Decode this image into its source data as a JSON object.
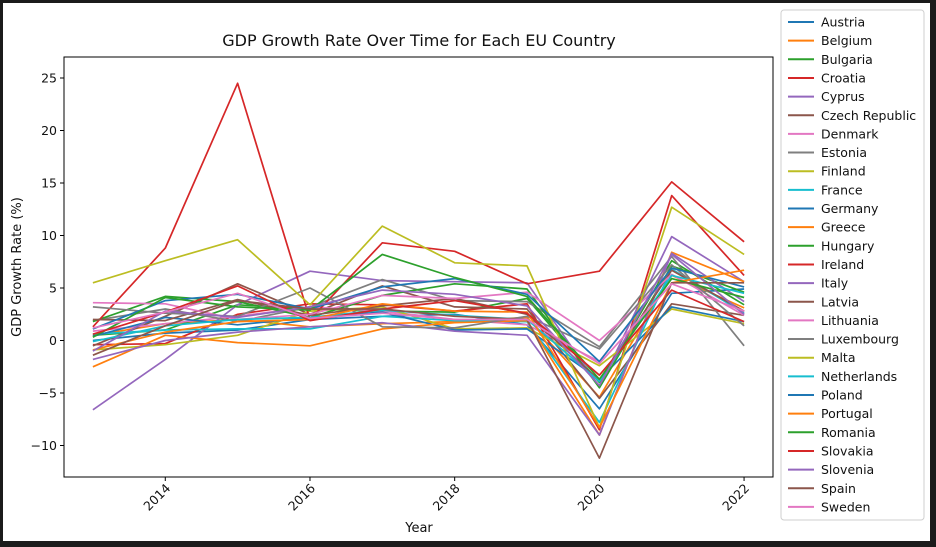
{
  "chart_data": {
    "type": "line",
    "title": "GDP Growth Rate Over Time for Each EU Country",
    "xlabel": "Year",
    "ylabel": "GDP Growth Rate (%)",
    "xlim": [
      2012.6,
      2022.4
    ],
    "ylim": [
      -13,
      27
    ],
    "xticks": [
      2014,
      2016,
      2018,
      2020,
      2022
    ],
    "yticks": [
      -10,
      -5,
      0,
      5,
      10,
      15,
      20,
      25
    ],
    "grid": false,
    "legend_position": "outside-right",
    "x": [
      2013,
      2014,
      2015,
      2016,
      2017,
      2018,
      2019,
      2020,
      2021,
      2022
    ],
    "series": [
      {
        "name": "Austria",
        "color": "#1f77b4",
        "values": [
          0.0,
          0.7,
          1.0,
          2.0,
          2.3,
          2.5,
          1.5,
          -6.5,
          4.5,
          4.9
        ]
      },
      {
        "name": "Belgium",
        "color": "#ff7f0e",
        "values": [
          0.5,
          1.6,
          2.0,
          1.3,
          1.6,
          1.8,
          2.2,
          -5.4,
          6.2,
          3.1
        ]
      },
      {
        "name": "Bulgaria",
        "color": "#2ca02c",
        "values": [
          0.5,
          1.0,
          3.4,
          3.0,
          2.8,
          2.7,
          4.0,
          -4.0,
          7.6,
          3.4
        ]
      },
      {
        "name": "Croatia",
        "color": "#d62728",
        "values": [
          -0.4,
          -0.3,
          2.5,
          3.5,
          3.4,
          2.8,
          3.5,
          -8.5,
          13.8,
          6.2
        ]
      },
      {
        "name": "Cyprus",
        "color": "#9467bd",
        "values": [
          -6.6,
          -1.8,
          3.4,
          6.6,
          5.7,
          5.6,
          5.5,
          -4.4,
          9.9,
          5.6
        ]
      },
      {
        "name": "Czech Republic",
        "color": "#8c564b",
        "values": [
          -0.5,
          2.3,
          5.4,
          2.5,
          5.2,
          3.2,
          3.0,
          -5.5,
          3.5,
          2.4
        ]
      },
      {
        "name": "Denmark",
        "color": "#e377c2",
        "values": [
          0.9,
          1.6,
          2.3,
          3.2,
          2.8,
          2.0,
          1.5,
          -2.0,
          6.8,
          2.7
        ]
      },
      {
        "name": "Estonia",
        "color": "#7f7f7f",
        "values": [
          1.9,
          3.0,
          1.8,
          3.2,
          5.8,
          3.8,
          3.7,
          -0.6,
          8.0,
          -0.5
        ]
      },
      {
        "name": "Finland",
        "color": "#bcbd22",
        "values": [
          -0.9,
          -0.4,
          0.5,
          2.8,
          3.2,
          1.1,
          1.2,
          -2.4,
          3.0,
          1.6
        ]
      },
      {
        "name": "France",
        "color": "#17becf",
        "values": [
          0.6,
          1.0,
          1.1,
          1.1,
          2.3,
          1.9,
          1.8,
          -7.8,
          6.8,
          2.6
        ]
      },
      {
        "name": "Germany",
        "color": "#1f77b4",
        "values": [
          0.4,
          2.2,
          1.5,
          2.2,
          2.7,
          1.0,
          1.1,
          -3.7,
          3.2,
          1.8
        ]
      },
      {
        "name": "Greece",
        "color": "#ff7f0e",
        "values": [
          -2.5,
          0.5,
          -0.2,
          -0.5,
          1.1,
          1.7,
          1.9,
          -9.0,
          8.4,
          5.6
        ]
      },
      {
        "name": "Hungary",
        "color": "#2ca02c",
        "values": [
          1.8,
          4.2,
          3.7,
          2.2,
          4.3,
          5.4,
          4.9,
          -4.5,
          7.1,
          4.6
        ]
      },
      {
        "name": "Ireland",
        "color": "#d62728",
        "values": [
          1.3,
          8.8,
          24.5,
          2.0,
          9.3,
          8.5,
          5.4,
          6.6,
          15.1,
          9.4
        ]
      },
      {
        "name": "Italy",
        "color": "#9467bd",
        "values": [
          -1.8,
          0.0,
          0.8,
          1.3,
          1.7,
          0.9,
          0.5,
          -9.0,
          8.3,
          3.7
        ]
      },
      {
        "name": "Latvia",
        "color": "#8c564b",
        "values": [
          2.0,
          1.9,
          3.9,
          2.4,
          3.3,
          4.0,
          2.5,
          -3.8,
          6.7,
          2.8
        ]
      },
      {
        "name": "Lithuania",
        "color": "#e377c2",
        "values": [
          3.6,
          3.5,
          2.0,
          2.5,
          4.3,
          4.0,
          4.6,
          0.0,
          6.3,
          2.4
        ]
      },
      {
        "name": "Luxembourg",
        "color": "#7f7f7f",
        "values": [
          3.2,
          2.6,
          2.3,
          5.0,
          1.3,
          1.2,
          2.3,
          -0.8,
          7.2,
          1.4
        ]
      },
      {
        "name": "Malta",
        "color": "#bcbd22",
        "values": [
          5.5,
          7.6,
          9.6,
          3.4,
          10.9,
          7.4,
          7.1,
          -8.3,
          12.7,
          8.2
        ]
      },
      {
        "name": "Netherlands",
        "color": "#17becf",
        "values": [
          -0.1,
          1.4,
          2.0,
          2.2,
          2.9,
          2.4,
          2.0,
          -3.9,
          6.2,
          4.5
        ]
      },
      {
        "name": "Poland",
        "color": "#1f77b4",
        "values": [
          1.1,
          3.8,
          4.4,
          3.0,
          5.1,
          5.9,
          4.4,
          -2.0,
          6.9,
          5.1
        ]
      },
      {
        "name": "Portugal",
        "color": "#ff7f0e",
        "values": [
          -0.9,
          0.8,
          1.8,
          2.0,
          3.5,
          2.8,
          2.7,
          -8.3,
          5.5,
          6.7
        ]
      },
      {
        "name": "Romania",
        "color": "#2ca02c",
        "values": [
          0.3,
          4.1,
          3.2,
          2.9,
          8.2,
          6.0,
          4.2,
          -3.7,
          5.9,
          4.1
        ]
      },
      {
        "name": "Slovakia",
        "color": "#d62728",
        "values": [
          0.6,
          2.7,
          5.2,
          1.9,
          3.0,
          3.8,
          2.6,
          -3.3,
          4.8,
          1.8
        ]
      },
      {
        "name": "Slovenia",
        "color": "#9467bd",
        "values": [
          -1.0,
          2.8,
          2.2,
          3.2,
          4.8,
          4.4,
          3.3,
          -4.3,
          8.2,
          2.5
        ]
      },
      {
        "name": "Spain",
        "color": "#8c564b",
        "values": [
          -1.4,
          1.4,
          3.8,
          3.0,
          3.0,
          2.3,
          2.0,
          -11.2,
          5.5,
          5.5
        ]
      },
      {
        "name": "Sweden",
        "color": "#e377c2",
        "values": [
          1.2,
          2.7,
          4.5,
          2.1,
          2.6,
          2.0,
          2.0,
          -2.2,
          5.4,
          2.8
        ]
      }
    ]
  }
}
